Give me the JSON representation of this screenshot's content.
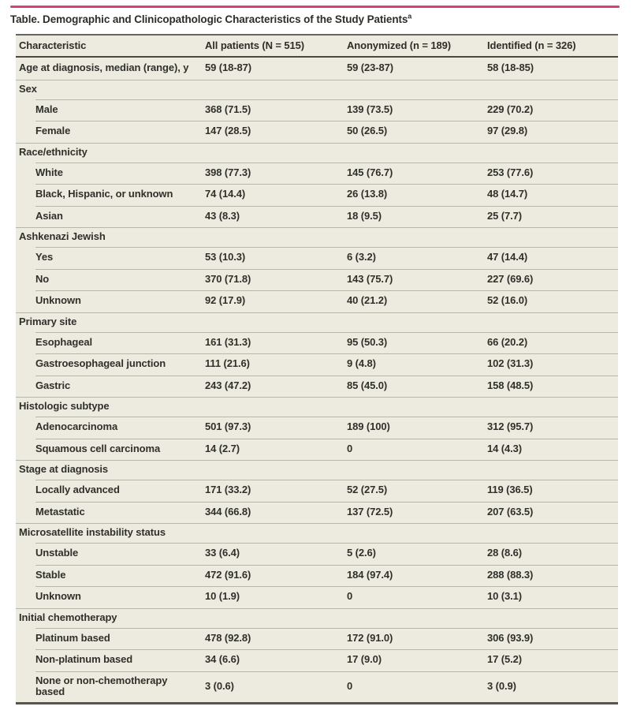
{
  "title": {
    "text": "Table. Demographic and Clinicopathologic Characteristics of the Study Patients",
    "footnote_marker": "a"
  },
  "table": {
    "columns": [
      "Characteristic",
      "All patients (N = 515)",
      "Anonymized (n = 189)",
      "Identified (n = 326)"
    ],
    "rows": [
      {
        "type": "data",
        "indent": false,
        "label": "Age at diagnosis, median (range), y",
        "values": [
          "59 (18-87)",
          "59 (23-87)",
          "58 (18-85)"
        ]
      },
      {
        "type": "section",
        "label": "Sex",
        "values": [
          "",
          "",
          ""
        ]
      },
      {
        "type": "data",
        "indent": true,
        "label": "Male",
        "values": [
          "368 (71.5)",
          "139 (73.5)",
          "229 (70.2)"
        ]
      },
      {
        "type": "data",
        "indent": true,
        "label": "Female",
        "values": [
          "147 (28.5)",
          "50 (26.5)",
          "97 (29.8)"
        ]
      },
      {
        "type": "section",
        "label": "Race/ethnicity",
        "values": [
          "",
          "",
          ""
        ]
      },
      {
        "type": "data",
        "indent": true,
        "label": "White",
        "values": [
          "398 (77.3)",
          "145 (76.7)",
          "253 (77.6)"
        ]
      },
      {
        "type": "data",
        "indent": true,
        "label": "Black, Hispanic, or unknown",
        "values": [
          "74 (14.4)",
          "26 (13.8)",
          "48 (14.7)"
        ]
      },
      {
        "type": "data",
        "indent": true,
        "label": "Asian",
        "values": [
          "43 (8.3)",
          "18 (9.5)",
          "25 (7.7)"
        ]
      },
      {
        "type": "section",
        "label": "Ashkenazi Jewish",
        "values": [
          "",
          "",
          ""
        ]
      },
      {
        "type": "data",
        "indent": true,
        "label": "Yes",
        "values": [
          "53 (10.3)",
          "6 (3.2)",
          "47 (14.4)"
        ]
      },
      {
        "type": "data",
        "indent": true,
        "label": "No",
        "values": [
          "370 (71.8)",
          "143 (75.7)",
          "227 (69.6)"
        ]
      },
      {
        "type": "data",
        "indent": true,
        "label": "Unknown",
        "values": [
          "92 (17.9)",
          "40 (21.2)",
          "52 (16.0)"
        ]
      },
      {
        "type": "section",
        "label": "Primary site",
        "values": [
          "",
          "",
          ""
        ]
      },
      {
        "type": "data",
        "indent": true,
        "label": "Esophageal",
        "values": [
          "161 (31.3)",
          "95 (50.3)",
          "66 (20.2)"
        ]
      },
      {
        "type": "data",
        "indent": true,
        "label": "Gastroesophageal junction",
        "values": [
          "111 (21.6)",
          "9 (4.8)",
          "102 (31.3)"
        ]
      },
      {
        "type": "data",
        "indent": true,
        "label": "Gastric",
        "values": [
          "243 (47.2)",
          "85 (45.0)",
          "158 (48.5)"
        ]
      },
      {
        "type": "section",
        "label": "Histologic subtype",
        "values": [
          "",
          "",
          ""
        ]
      },
      {
        "type": "data",
        "indent": true,
        "label": "Adenocarcinoma",
        "values": [
          "501 (97.3)",
          "189 (100)",
          "312 (95.7)"
        ]
      },
      {
        "type": "data",
        "indent": true,
        "label": "Squamous cell carcinoma",
        "values": [
          "14 (2.7)",
          "0",
          "14 (4.3)"
        ]
      },
      {
        "type": "section",
        "label": "Stage at diagnosis",
        "values": [
          "",
          "",
          ""
        ]
      },
      {
        "type": "data",
        "indent": true,
        "label": "Locally advanced",
        "values": [
          "171 (33.2)",
          "52 (27.5)",
          "119 (36.5)"
        ]
      },
      {
        "type": "data",
        "indent": true,
        "label": "Metastatic",
        "values": [
          "344 (66.8)",
          "137 (72.5)",
          "207 (63.5)"
        ]
      },
      {
        "type": "section",
        "label": "Microsatellite instability status",
        "values": [
          "",
          "",
          ""
        ]
      },
      {
        "type": "data",
        "indent": true,
        "label": "Unstable",
        "values": [
          "33 (6.4)",
          "5 (2.6)",
          "28 (8.6)"
        ]
      },
      {
        "type": "data",
        "indent": true,
        "label": "Stable",
        "values": [
          "472 (91.6)",
          "184 (97.4)",
          "288 (88.3)"
        ]
      },
      {
        "type": "data",
        "indent": true,
        "label": "Unknown",
        "values": [
          "10 (1.9)",
          "0",
          "10 (3.1)"
        ]
      },
      {
        "type": "section",
        "label": "Initial chemotherapy",
        "values": [
          "",
          "",
          ""
        ]
      },
      {
        "type": "data",
        "indent": true,
        "label": "Platinum based",
        "values": [
          "478 (92.8)",
          "172 (91.0)",
          "306 (93.9)"
        ]
      },
      {
        "type": "data",
        "indent": true,
        "label": "Non-platinum based",
        "values": [
          "34 (6.6)",
          "17 (9.0)",
          "17 (5.2)"
        ]
      },
      {
        "type": "data",
        "indent": true,
        "label": "None or non-chemotherapy based",
        "values": [
          "3 (0.6)",
          "0",
          "3 (0.9)"
        ]
      }
    ]
  },
  "colors": {
    "accent": "#d6407a",
    "table_background": "#edebe0",
    "rule_dark": "#4a4841",
    "separator": "#b8b5a9",
    "text": "#30302b"
  }
}
